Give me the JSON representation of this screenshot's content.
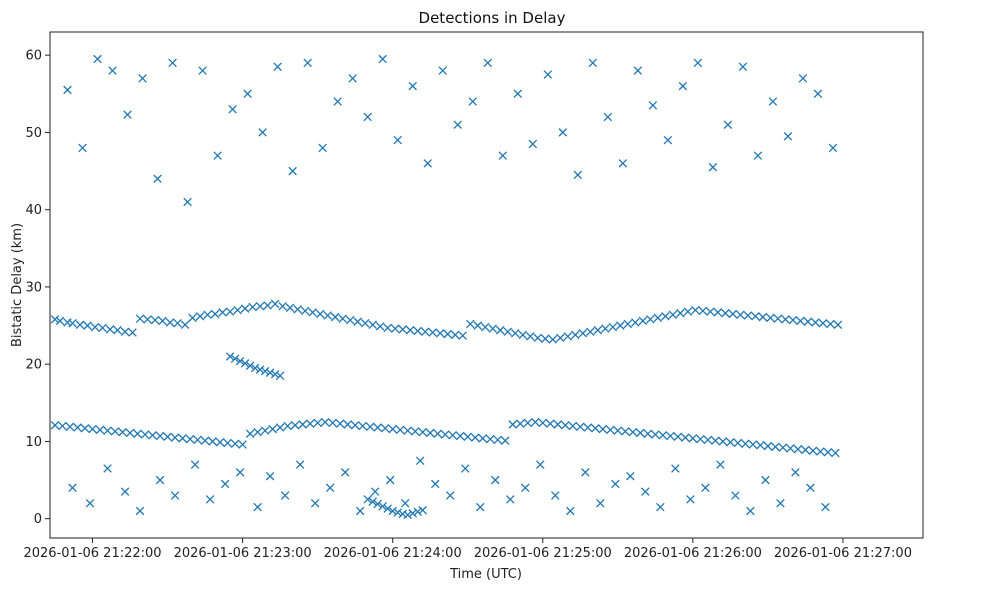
{
  "chart_data": {
    "type": "scatter",
    "title": "Detections in Delay",
    "xlabel": "Time (UTC)",
    "ylabel": "Bistatic Delay (km)",
    "x_unit": "seconds after 2026-01-06 21:22:00",
    "xlim": [
      -17,
      332
    ],
    "ylim": [
      -2.5,
      63
    ],
    "x_ticks": [
      {
        "value": 0,
        "label": "2026-01-06 21:22:00"
      },
      {
        "value": 60,
        "label": "2026-01-06 21:23:00"
      },
      {
        "value": 120,
        "label": "2026-01-06 21:24:00"
      },
      {
        "value": 180,
        "label": "2026-01-06 21:25:00"
      },
      {
        "value": 240,
        "label": "2026-01-06 21:26:00"
      },
      {
        "value": 300,
        "label": "2026-01-06 21:27:00"
      }
    ],
    "y_ticks": [
      {
        "value": 0,
        "label": "0"
      },
      {
        "value": 10,
        "label": "10"
      },
      {
        "value": 20,
        "label": "20"
      },
      {
        "value": 30,
        "label": "30"
      },
      {
        "value": 40,
        "label": "40"
      },
      {
        "value": 50,
        "label": "50"
      },
      {
        "value": 60,
        "label": "60"
      }
    ],
    "marker": "x",
    "color": "#1f77b4",
    "series": [
      {
        "name": "Detections",
        "x": [
          -15,
          -13,
          -10,
          -8,
          -5,
          -2,
          1,
          4,
          7,
          10,
          13,
          16,
          19,
          22,
          25,
          28,
          31,
          34,
          37,
          40,
          43,
          46,
          49,
          52,
          55,
          58,
          61,
          64,
          67,
          70,
          73,
          76,
          79,
          82,
          85,
          88,
          91,
          94,
          97,
          100,
          103,
          106,
          109,
          112,
          115,
          118,
          121,
          124,
          127,
          130,
          133,
          136,
          139,
          142,
          145,
          148,
          151,
          154,
          157,
          160,
          163,
          166,
          169,
          172,
          175,
          178,
          181,
          184,
          187,
          190,
          193,
          196,
          199,
          202,
          205,
          208,
          211,
          214,
          217,
          220,
          223,
          226,
          229,
          232,
          235,
          238,
          241,
          244,
          247,
          250,
          253,
          256,
          259,
          262,
          265,
          268,
          271,
          274,
          277,
          280,
          283,
          286,
          289,
          292,
          295,
          298,
          -15,
          -12,
          -9,
          -6,
          -3,
          0,
          3,
          6,
          9,
          12,
          15,
          18,
          21,
          24,
          27,
          30,
          33,
          36,
          39,
          42,
          45,
          48,
          51,
          54,
          57,
          60,
          63,
          66,
          69,
          72,
          75,
          78,
          81,
          84,
          87,
          90,
          93,
          96,
          99,
          102,
          105,
          108,
          111,
          114,
          117,
          120,
          123,
          126,
          129,
          132,
          135,
          138,
          141,
          144,
          147,
          150,
          153,
          156,
          159,
          162,
          165,
          168,
          171,
          174,
          177,
          180,
          183,
          186,
          189,
          192,
          195,
          198,
          201,
          204,
          207,
          210,
          213,
          216,
          219,
          222,
          225,
          228,
          231,
          234,
          237,
          240,
          243,
          246,
          249,
          252,
          255,
          258,
          261,
          264,
          267,
          270,
          273,
          276,
          279,
          282,
          285,
          288,
          291,
          294,
          297,
          55,
          57,
          59,
          61,
          63,
          65,
          67,
          69,
          71,
          73,
          75,
          110,
          112,
          114,
          116,
          118,
          120,
          122,
          124,
          126,
          128,
          130,
          132,
          -10,
          -4,
          2,
          8,
          14,
          20,
          26,
          32,
          38,
          44,
          50,
          56,
          62,
          68,
          74,
          80,
          86,
          92,
          98,
          104,
          110,
          116,
          122,
          128,
          134,
          140,
          146,
          152,
          158,
          164,
          170,
          176,
          182,
          188,
          194,
          200,
          206,
          212,
          218,
          224,
          230,
          236,
          242,
          248,
          254,
          260,
          266,
          272,
          278,
          284,
          290,
          296,
          -8,
          -1,
          6,
          13,
          19,
          27,
          33,
          41,
          47,
          53,
          59,
          66,
          71,
          77,
          83,
          89,
          95,
          101,
          107,
          113,
          119,
          125,
          131,
          137,
          143,
          149,
          155,
          161,
          167,
          173,
          179,
          185,
          191,
          197,
          203,
          209,
          215,
          221,
          227,
          233,
          239,
          245,
          251,
          257,
          263,
          269,
          275,
          281,
          287,
          293
        ],
        "y": [
          25.8,
          25.6,
          25.4,
          25.3,
          25.1,
          25.0,
          24.8,
          24.7,
          24.5,
          24.4,
          24.2,
          24.1,
          25.9,
          25.8,
          25.7,
          25.6,
          25.4,
          25.3,
          25.1,
          26.0,
          26.2,
          26.4,
          26.5,
          26.7,
          26.8,
          27.0,
          27.2,
          27.4,
          27.5,
          27.6,
          27.8,
          27.5,
          27.3,
          27.1,
          26.9,
          26.7,
          26.5,
          26.3,
          26.1,
          25.9,
          25.7,
          25.5,
          25.3,
          25.1,
          24.9,
          24.7,
          24.6,
          24.5,
          24.4,
          24.3,
          24.2,
          24.1,
          24.0,
          23.9,
          23.8,
          23.7,
          25.2,
          25.0,
          24.8,
          24.6,
          24.4,
          24.2,
          24.0,
          23.8,
          23.6,
          23.4,
          23.3,
          23.2,
          23.4,
          23.6,
          23.8,
          24.0,
          24.2,
          24.4,
          24.6,
          24.8,
          25.0,
          25.2,
          25.4,
          25.6,
          25.8,
          26.0,
          26.2,
          26.4,
          26.6,
          26.8,
          27.0,
          26.9,
          26.8,
          26.7,
          26.6,
          26.5,
          26.4,
          26.3,
          26.2,
          26.1,
          26.0,
          25.9,
          25.8,
          25.7,
          25.6,
          25.5,
          25.4,
          25.3,
          25.2,
          25.1,
          12.1,
          12.0,
          11.9,
          11.8,
          11.7,
          11.6,
          11.5,
          11.4,
          11.3,
          11.2,
          11.1,
          11.0,
          10.9,
          10.8,
          10.7,
          10.6,
          10.5,
          10.4,
          10.3,
          10.2,
          10.1,
          10.0,
          9.9,
          9.8,
          9.7,
          9.6,
          11.0,
          11.2,
          11.4,
          11.6,
          11.8,
          12.0,
          12.1,
          12.2,
          12.3,
          12.4,
          12.5,
          12.4,
          12.3,
          12.2,
          12.1,
          12.0,
          11.9,
          11.8,
          11.7,
          11.6,
          11.5,
          11.4,
          11.3,
          11.2,
          11.1,
          11.0,
          10.9,
          10.8,
          10.7,
          10.6,
          10.5,
          10.4,
          10.3,
          10.2,
          10.1,
          12.2,
          12.3,
          12.4,
          12.5,
          12.4,
          12.3,
          12.2,
          12.1,
          12.0,
          11.9,
          11.8,
          11.7,
          11.6,
          11.5,
          11.4,
          11.3,
          11.2,
          11.1,
          11.0,
          10.9,
          10.8,
          10.7,
          10.6,
          10.5,
          10.4,
          10.3,
          10.2,
          10.1,
          10.0,
          9.9,
          9.8,
          9.7,
          9.6,
          9.5,
          9.4,
          9.3,
          9.2,
          9.1,
          9.0,
          8.9,
          8.8,
          8.7,
          8.6,
          8.5,
          21.0,
          20.7,
          20.4,
          20.1,
          19.8,
          19.5,
          19.3,
          19.1,
          18.9,
          18.7,
          18.5,
          2.5,
          2.2,
          1.9,
          1.6,
          1.3,
          1.0,
          0.8,
          0.6,
          0.5,
          0.7,
          0.9,
          1.1,
          55.5,
          48.0,
          59.5,
          58.0,
          52.3,
          57.0,
          44.0,
          59.0,
          41.0,
          58.0,
          47.0,
          53.0,
          55.0,
          50.0,
          58.5,
          45.0,
          59.0,
          48.0,
          54.0,
          57.0,
          52.0,
          59.5,
          49.0,
          56.0,
          46.0,
          58.0,
          51.0,
          54.0,
          59.0,
          47.0,
          55.0,
          48.5,
          57.5,
          50.0,
          44.5,
          59.0,
          52.0,
          46.0,
          58.0,
          53.5,
          49.0,
          56.0,
          59.0,
          45.5,
          51.0,
          58.5,
          47.0,
          54.0,
          49.5,
          57.0,
          55.0,
          48.0,
          4.0,
          2.0,
          6.5,
          3.5,
          1.0,
          5.0,
          3.0,
          7.0,
          2.5,
          4.5,
          6.0,
          1.5,
          5.5,
          3.0,
          7.0,
          2.0,
          4.0,
          6.0,
          1.0,
          3.5,
          5.0,
          2.0,
          7.5,
          4.5,
          3.0,
          6.5,
          1.5,
          5.0,
          2.5,
          4.0,
          7.0,
          3.0,
          1.0,
          6.0,
          2.0,
          4.5,
          5.5,
          3.5,
          1.5,
          6.5,
          2.5,
          4.0,
          7.0,
          3.0,
          1.0,
          5.0,
          2.0,
          6.0,
          4.0,
          1.5
        ]
      }
    ]
  }
}
